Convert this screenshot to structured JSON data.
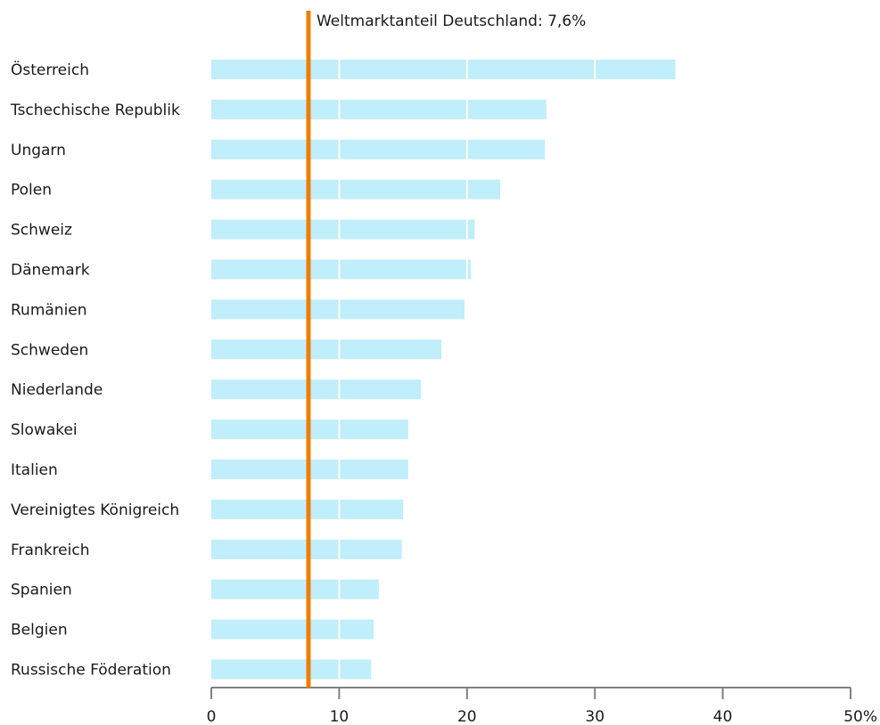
{
  "chart_data": {
    "type": "bar",
    "orientation": "horizontal",
    "categories": [
      "Österreich",
      "Tschechische Republik",
      "Ungarn",
      "Polen",
      "Schweiz",
      "Dänemark",
      "Rumänien",
      "Schweden",
      "Niederlande",
      "Slowakei",
      "Italien",
      "Vereinigtes Königreich",
      "Frankreich",
      "Spanien",
      "Belgien",
      "Russische Föderation"
    ],
    "values": [
      36.3,
      26.2,
      26.1,
      22.6,
      20.6,
      20.3,
      19.8,
      18.0,
      16.4,
      15.4,
      15.4,
      15.0,
      14.9,
      13.1,
      12.7,
      12.5
    ],
    "xlim": [
      0,
      50
    ],
    "x_ticks": [
      0,
      10,
      20,
      30,
      40,
      50
    ],
    "x_tick_labels": [
      "0",
      "10",
      "20",
      "30",
      "40",
      "50%"
    ],
    "grid": "vertical white lines inside bars at each tick",
    "reference_line": {
      "value": 7.6,
      "label": "Weltmarktanteil Deutschland: 7,6%"
    },
    "colors": {
      "bar": "#c0eefa",
      "reference_line": "#f07d00",
      "axis": "#808080"
    },
    "title": "",
    "xlabel": "",
    "ylabel": ""
  }
}
